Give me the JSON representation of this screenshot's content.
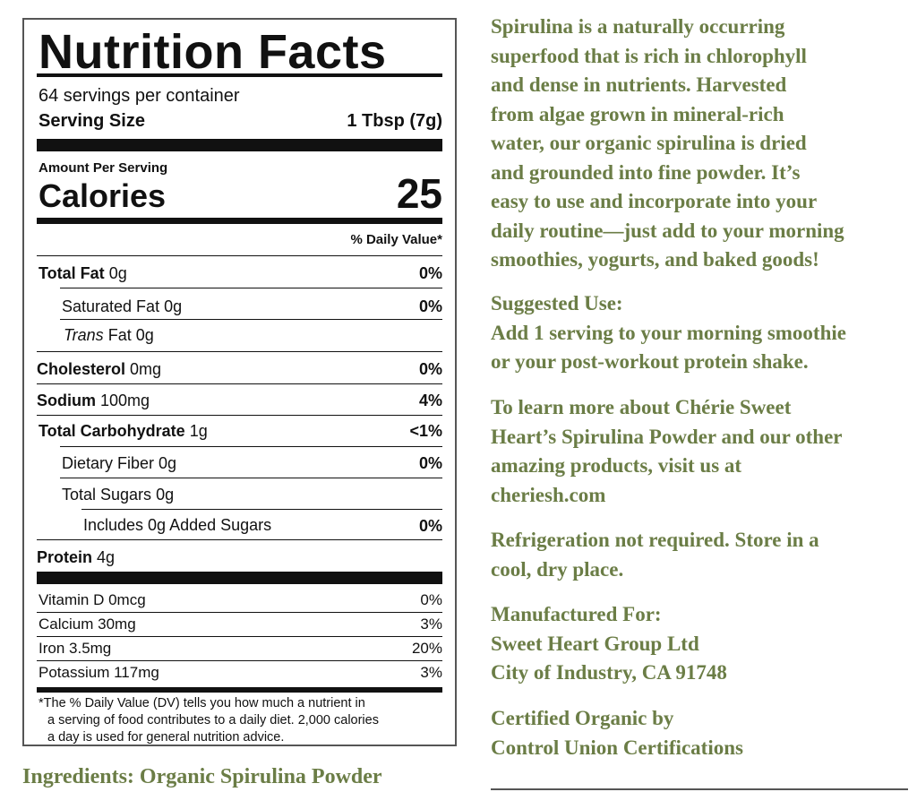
{
  "label": {
    "title": "Nutrition Facts",
    "servings": "64 servings per container",
    "serving_size_label": "Serving Size",
    "serving_size_value": "1 Tbsp (7g)",
    "amount_per_serving": "Amount Per Serving",
    "calories_label": "Calories",
    "calories_value": "25",
    "daily_value_header": "% Daily Value*",
    "nutrients": [
      {
        "name": "Total Fat",
        "amount": "0g",
        "dv": "0%"
      },
      {
        "name": "Saturated Fat",
        "amount": "0g",
        "dv": "0%"
      },
      {
        "name": "Trans",
        "rest": "Fat 0g",
        "dv": ""
      },
      {
        "name": "Cholesterol",
        "amount": "0mg",
        "dv": "0%"
      },
      {
        "name": "Sodium",
        "amount": "100mg",
        "dv": "4%"
      },
      {
        "name": "Total Carbohydrate",
        "amount": "1g",
        "dv": "<1%"
      },
      {
        "name": "Dietary Fiber",
        "amount": "0g",
        "dv": "0%"
      },
      {
        "name": "Total Sugars",
        "amount": "0g",
        "dv": ""
      },
      {
        "name": "Includes 0g Added Sugars",
        "amount": "",
        "dv": "0%"
      },
      {
        "name": "Protein",
        "amount": "4g",
        "dv": ""
      }
    ],
    "vitamins": [
      {
        "name": "Vitamin D 0mcg",
        "dv": "0%"
      },
      {
        "name": "Calcium 30mg",
        "dv": "3%"
      },
      {
        "name": "Iron 3.5mg",
        "dv": "20%"
      },
      {
        "name": "Potassium 117mg",
        "dv": "3%"
      }
    ],
    "footnote": [
      "*The % Daily Value (DV) tells you how much a nutrient in",
      "a serving of food contributes to a daily diet. 2,000 calories",
      "a day is used for general nutrition advice."
    ]
  },
  "ingredients": "Ingredients: Organic Spirulina Powder",
  "side": {
    "intro": [
      "Spirulina is a naturally occurring",
      "superfood that is rich in chlorophyll",
      "and dense in nutrients. Harvested",
      "from algae grown in mineral-rich",
      "water, our organic spirulina is dried",
      "and grounded into fine powder. It’s",
      "easy to use and incorporate into your",
      "daily routine—just add to your morning",
      "smoothies, yogurts, and baked goods!"
    ],
    "suggested": [
      "Suggested Use:",
      "Add 1 serving to your morning smoothie",
      "or your post-workout protein shake."
    ],
    "learn": [
      "To learn more about Chérie Sweet",
      "Heart’s Spirulina Powder and our other",
      "amazing products, visit us at",
      "cheriesh.com"
    ],
    "storage": [
      "Refrigeration not required. Store in a",
      "cool, dry place."
    ],
    "manufacturer": [
      "Manufactured For:",
      "Sweet Heart Group Ltd",
      "City of Industry, CA 91748"
    ],
    "certified": [
      "Certified Organic by",
      "Control Union Certifications"
    ]
  }
}
